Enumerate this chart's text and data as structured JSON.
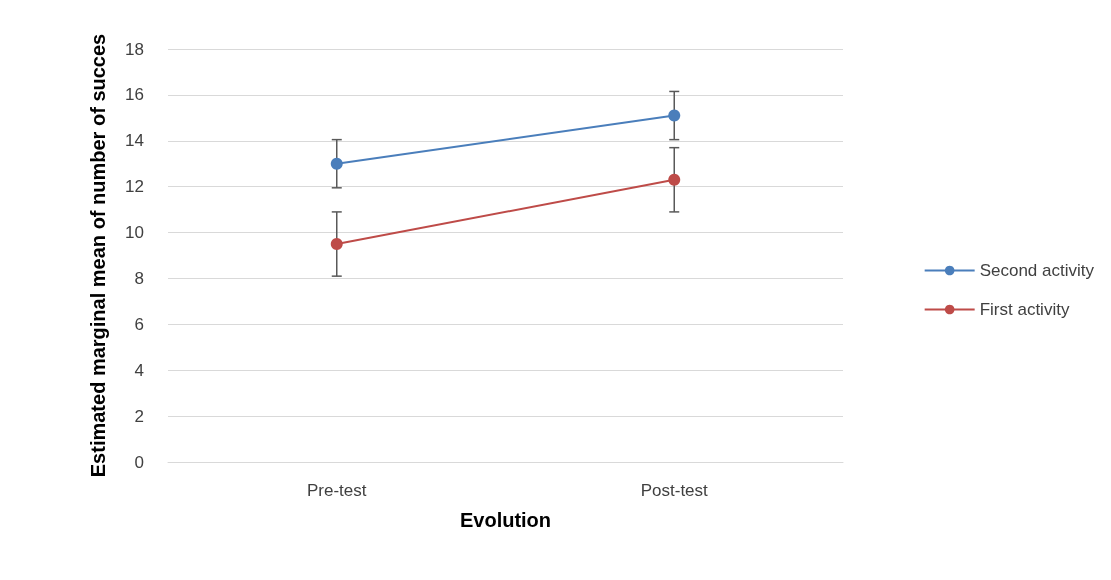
{
  "chart_data": {
    "type": "line",
    "xlabel": "Evolution",
    "ylabel": "Estimated marginal mean of number of succes",
    "categories": [
      "Pre-test",
      "Post-test"
    ],
    "series": [
      {
        "name": "Second activity",
        "color": "#4a7ebb",
        "values": [
          13.0,
          15.1
        ],
        "errors": [
          [
            11.95,
            14.05
          ],
          [
            14.05,
            16.15
          ]
        ]
      },
      {
        "name": "First activity",
        "color": "#be4b48",
        "values": [
          9.5,
          12.3
        ],
        "errors": [
          [
            8.1,
            10.9
          ],
          [
            10.9,
            13.7
          ]
        ]
      }
    ],
    "ylim": [
      0,
      18
    ],
    "yticks": [
      0,
      2,
      4,
      6,
      8,
      10,
      12,
      14,
      16,
      18
    ],
    "grid": "y",
    "legend": "right",
    "marker": "circle",
    "line_style": "solid"
  }
}
